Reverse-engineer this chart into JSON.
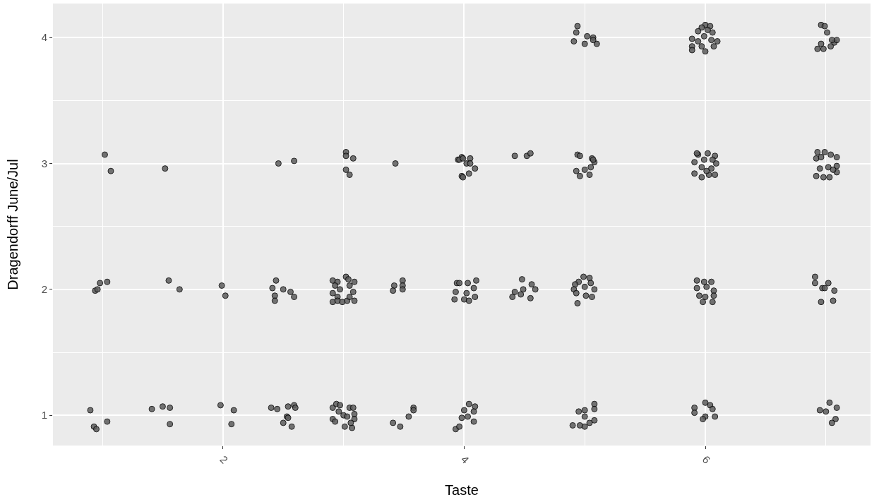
{
  "chart_data": {
    "type": "scatter",
    "xlabel": "Taste",
    "ylabel": "Dragendorff June/Jul",
    "xlim": [
      0.59,
      7.37
    ],
    "xticks": [
      2,
      4,
      6
    ],
    "ylim": [
      0.76,
      4.27
    ],
    "yticks": [
      1,
      2,
      3,
      4
    ],
    "grid": true,
    "marker": "circle",
    "color": "#5c5c5c",
    "x": [
      1.02,
      1.07,
      1.52,
      2.46,
      2.59,
      3.02,
      3.02,
      3.08,
      3.02,
      3.05,
      3.43,
      3.95,
      3.98,
      3.98,
      3.96,
      3.99,
      4.05,
      4.02,
      4.05,
      4.09,
      4.04,
      3.99,
      4.42,
      4.52,
      4.55,
      4.94,
      4.96,
      5.06,
      5.08,
      5.05,
      5.0,
      4.93,
      4.96,
      5.04,
      5.07,
      4.94,
      4.93,
      4.91,
      5.02,
      5.07,
      5.0,
      5.1,
      5.07,
      6.0,
      5.97,
      6.04,
      5.94,
      6.06,
      5.89,
      5.99,
      6.05,
      6.1,
      5.94,
      5.89,
      5.89,
      6.0,
      6.07,
      5.97,
      6.02,
      6.96,
      6.99,
      7.01,
      6.96,
      6.93,
      6.98,
      7.04,
      7.07,
      7.09,
      7.05,
      5.94,
      6.02,
      6.08,
      5.91,
      6.09,
      5.99,
      5.97,
      6.05,
      5.91,
      5.97,
      6.03,
      6.08,
      6.01,
      5.93,
      6.06,
      6.93,
      6.99,
      7.04,
      7.09,
      6.92,
      6.96,
      6.95,
      7.02,
      7.09,
      7.09,
      6.92,
      6.98,
      7.03,
      7.06,
      0.94,
      0.96,
      0.98,
      1.04,
      1.55,
      1.64,
      1.99,
      2.02,
      2.44,
      2.41,
      2.5,
      2.56,
      2.59,
      2.43,
      2.43,
      2.91,
      2.95,
      2.93,
      2.97,
      2.91,
      3.02,
      3.04,
      3.09,
      3.05,
      3.08,
      2.95,
      2.91,
      2.95,
      2.99,
      3.03,
      3.09,
      3.05,
      3.42,
      3.49,
      3.49,
      3.49,
      3.41,
      3.94,
      3.93,
      3.92,
      0.9,
      0.93,
      0.95,
      1.04,
      1.41,
      1.5,
      1.56,
      1.56,
      1.98,
      2.09,
      2.07,
      2.4,
      2.45,
      2.54,
      2.59,
      2.6,
      2.53,
      2.54,
      2.5,
      2.57,
      2.91,
      2.94,
      2.97,
      3.05,
      3.08,
      2.96,
      3.0,
      3.03,
      3.09,
      3.09,
      2.91,
      2.93,
      3.01,
      3.07,
      3.06,
      3.41,
      3.47,
      3.54,
      3.58,
      3.58,
      3.93,
      3.96,
      4.03,
      4.1,
      4.08,
      4.02,
      4.0,
      4.04,
      4.09,
      4.48,
      4.56,
      4.59,
      4.49,
      4.42,
      4.4,
      4.47,
      4.55,
      4.99,
      5.04,
      4.95,
      4.92,
      5.05,
      5.0,
      4.91,
      5.08,
      4.93,
      5.01,
      5.06,
      4.94,
      5.93,
      5.99,
      6.05,
      5.93,
      6.01,
      6.07,
      5.95,
      6.0,
      6.06,
      5.98,
      6.07,
      6.91,
      6.91,
      6.97,
      7.02,
      7.07,
      6.96,
      7.06,
      6.99,
      4.04,
      4.09,
      4.0,
      4.08,
      3.98,
      4.03,
      4.08,
      3.96,
      5.08,
      5.08,
      5.0,
      4.95,
      5.0,
      5.08,
      5.04,
      4.9,
      4.96,
      5.0,
      6.0,
      6.04,
      5.91,
      6.06,
      5.91,
      6.0,
      5.98,
      6.08,
      7.03,
      7.09,
      6.95,
      7.0,
      7.08,
      7.05
    ],
    "values": [
      3.07,
      2.94,
      2.96,
      3.0,
      3.02,
      3.09,
      3.06,
      3.04,
      2.95,
      2.91,
      3.0,
      3.03,
      3.05,
      2.9,
      3.03,
      3.04,
      3.04,
      3.0,
      3.0,
      2.96,
      2.92,
      2.89,
      3.06,
      3.06,
      3.08,
      3.07,
      3.06,
      3.04,
      3.01,
      2.97,
      2.95,
      2.94,
      2.9,
      2.91,
      3.03,
      4.09,
      4.04,
      3.97,
      4.01,
      4.0,
      3.95,
      3.95,
      3.98,
      4.1,
      4.08,
      4.09,
      4.05,
      4.04,
      3.99,
      4.01,
      3.98,
      3.97,
      3.97,
      3.93,
      3.9,
      3.89,
      3.93,
      3.93,
      4.06,
      4.1,
      4.09,
      4.04,
      3.95,
      3.91,
      3.91,
      3.93,
      3.96,
      3.98,
      3.98,
      3.07,
      3.08,
      3.06,
      3.01,
      3.0,
      3.03,
      2.97,
      2.96,
      2.92,
      2.89,
      2.91,
      2.91,
      2.94,
      3.08,
      3.03,
      3.09,
      3.09,
      3.07,
      3.05,
      3.04,
      3.05,
      2.96,
      2.97,
      2.98,
      2.93,
      2.9,
      2.89,
      2.89,
      2.95,
      1.99,
      2.0,
      2.05,
      2.06,
      2.07,
      2.0,
      2.03,
      1.95,
      2.07,
      2.01,
      2.0,
      1.98,
      1.94,
      1.95,
      1.91,
      2.07,
      2.06,
      2.03,
      2.0,
      1.97,
      2.1,
      2.08,
      2.06,
      2.03,
      1.98,
      1.94,
      1.9,
      1.91,
      1.9,
      1.91,
      1.91,
      1.94,
      2.03,
      2.07,
      2.03,
      2.0,
      1.99,
      2.05,
      1.98,
      1.92,
      1.04,
      0.91,
      0.89,
      0.95,
      1.05,
      1.07,
      1.06,
      0.93,
      1.08,
      1.04,
      0.93,
      1.06,
      1.05,
      1.07,
      1.08,
      1.06,
      0.99,
      0.98,
      0.94,
      0.91,
      1.06,
      1.09,
      1.08,
      1.06,
      1.06,
      1.03,
      1.0,
      0.99,
      1.01,
      0.97,
      0.97,
      0.95,
      0.91,
      0.9,
      0.94,
      0.94,
      0.91,
      0.99,
      1.06,
      1.04,
      0.89,
      2.05,
      2.05,
      2.07,
      2.01,
      1.97,
      1.92,
      1.91,
      1.94,
      2.08,
      2.04,
      2.0,
      2.0,
      1.98,
      1.94,
      1.96,
      1.93,
      2.1,
      2.09,
      2.06,
      2.04,
      2.05,
      2.02,
      2.0,
      2.0,
      1.97,
      1.95,
      1.94,
      1.89,
      2.07,
      2.06,
      2.06,
      2.01,
      2.02,
      1.99,
      1.95,
      1.94,
      1.9,
      1.9,
      1.95,
      2.1,
      2.05,
      2.01,
      2.05,
      1.99,
      1.9,
      1.91,
      2.01,
      1.09,
      1.07,
      1.04,
      1.03,
      0.98,
      0.99,
      0.95,
      0.91,
      1.09,
      1.05,
      1.04,
      1.03,
      0.99,
      0.96,
      0.94,
      0.92,
      0.92,
      0.91,
      1.1,
      1.08,
      1.06,
      1.05,
      1.02,
      0.99,
      0.97,
      0.99,
      1.1,
      1.06,
      1.04,
      1.03,
      0.97,
      0.94
    ]
  }
}
